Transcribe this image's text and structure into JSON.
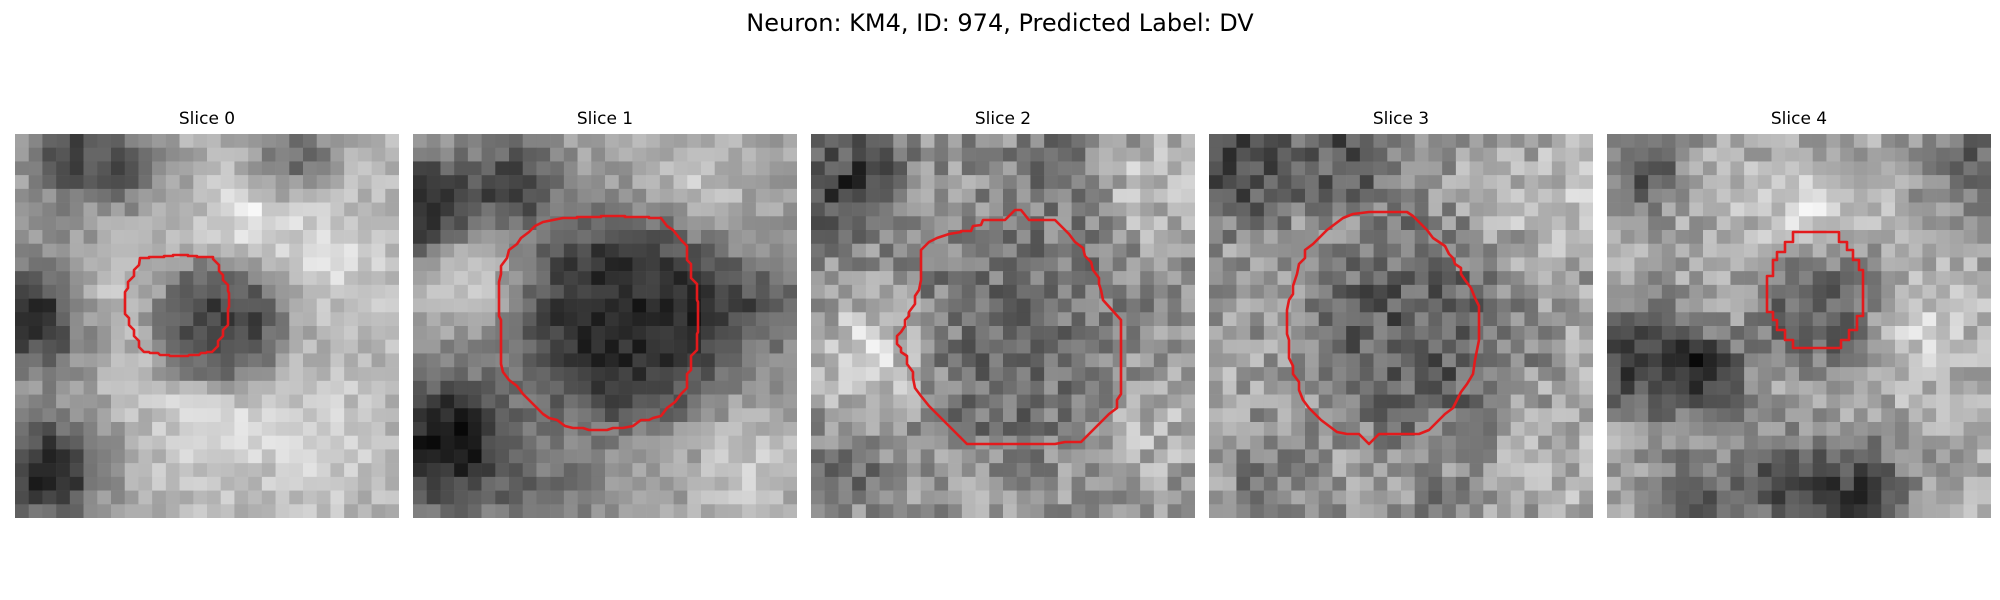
{
  "figure": {
    "title": "Neuron: KM4, ID: 974, Predicted Label: DV"
  },
  "colors": {
    "outline": "#e31a1c",
    "background": "#ffffff",
    "colormap": "grayscale"
  },
  "panels": [
    {
      "title": "Slice 0"
    },
    {
      "title": "Slice 1"
    },
    {
      "title": "Slice 2"
    },
    {
      "title": "Slice 3"
    },
    {
      "title": "Slice 4"
    }
  ]
}
